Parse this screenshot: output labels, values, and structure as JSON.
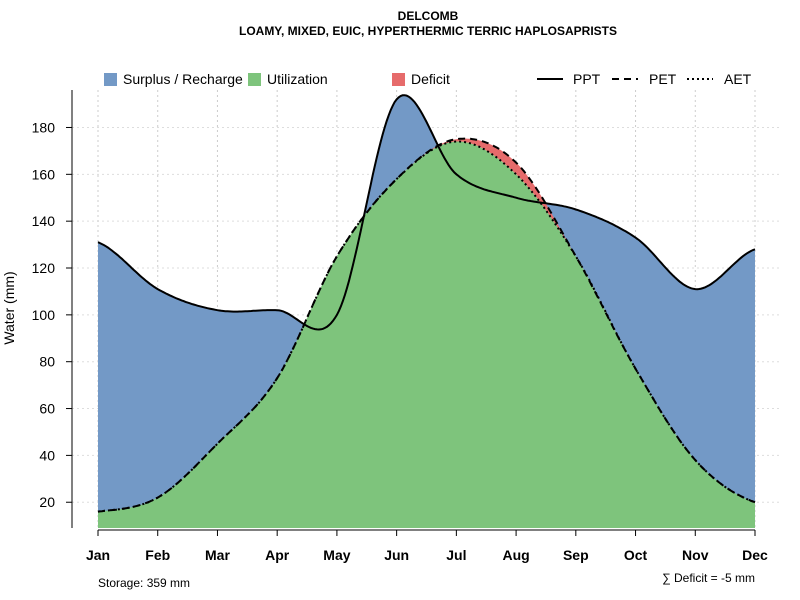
{
  "chart_data": {
    "type": "area",
    "title": "DELCOMB",
    "subtitle": "LOAMY, MIXED, EUIC, HYPERTHERMIC TERRIC HAPLOSAPRISTS",
    "xlabel": "",
    "ylabel": "Water (mm)",
    "categories": [
      "Jan",
      "Feb",
      "Mar",
      "Apr",
      "May",
      "Jun",
      "Jul",
      "Aug",
      "Sep",
      "Oct",
      "Nov",
      "Dec"
    ],
    "ylim": [
      9,
      196
    ],
    "yticks": [
      20,
      40,
      60,
      80,
      100,
      120,
      140,
      160,
      180
    ],
    "grid": true,
    "series": [
      {
        "name": "PPT",
        "style": "solid",
        "values": [
          131,
          111,
          102,
          102,
          100,
          192,
          160,
          150,
          145,
          133,
          111,
          128
        ]
      },
      {
        "name": "PET",
        "style": "dashed",
        "values": [
          16,
          22,
          45,
          73,
          125,
          158,
          175,
          165,
          125,
          77,
          38,
          20
        ]
      },
      {
        "name": "AET",
        "style": "dotted",
        "values": [
          16,
          22,
          45,
          73,
          125,
          158,
          174,
          160,
          125,
          77,
          38,
          20
        ]
      }
    ],
    "areas": [
      {
        "name": "Surplus / Recharge",
        "color": "#7399c6"
      },
      {
        "name": "Utilization",
        "color": "#7ec47c"
      },
      {
        "name": "Deficit",
        "color": "#e66b6b"
      }
    ],
    "legend_lines": [
      "PPT",
      "PET",
      "AET"
    ],
    "storage_note": "Storage: 359 mm",
    "deficit_note": "∑ Deficit = -5 mm",
    "legend_position": "top"
  }
}
